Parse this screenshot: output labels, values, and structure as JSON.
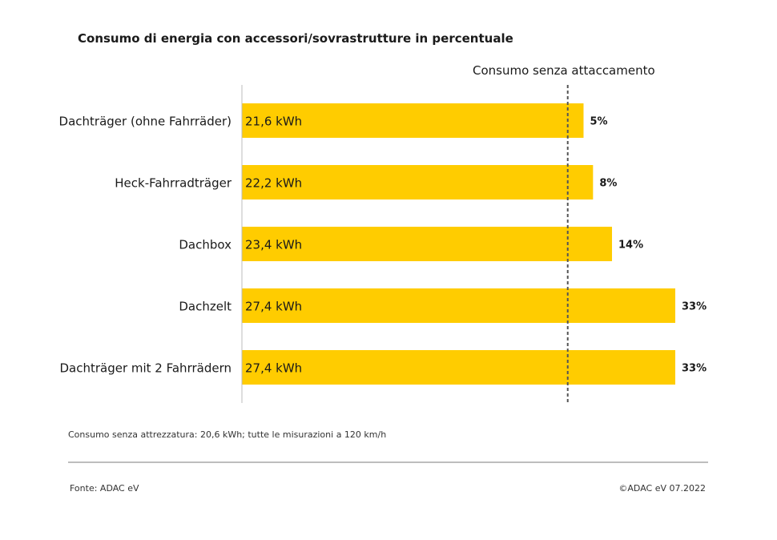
{
  "chart_data": {
    "type": "bar",
    "orientation": "horizontal",
    "title": "Consumo di energia con accessori/sovrastrutture in percentuale",
    "reference_line": {
      "label": "Consumo senza attaccamento",
      "value": 20.6
    },
    "categories": [
      "Dachträger (ohne Fahrräder)",
      "Heck-Fahrradträger",
      "Dachbox",
      "Dachzelt",
      "Dachträger mit 2 Fahrrädern"
    ],
    "values": [
      21.6,
      22.2,
      23.4,
      27.4,
      27.4
    ],
    "value_labels": [
      "21,6 kWh",
      "22,2 kWh",
      "23,4 kWh",
      "27,4 kWh",
      "27,4 kWh"
    ],
    "percent_labels": [
      "5%",
      "8%",
      "14%",
      "33%",
      "33%"
    ],
    "xlim": [
      0,
      27.4
    ],
    "bar_color": "#ffcc00",
    "grid": false,
    "legend": "none"
  },
  "footer": {
    "note": "Consumo senza attrezzatura: 20,6 kWh; tutte le misurazioni a 120 km/h",
    "source": "Fonte: ADAC eV",
    "copyright": "©ADAC eV 07.2022"
  }
}
